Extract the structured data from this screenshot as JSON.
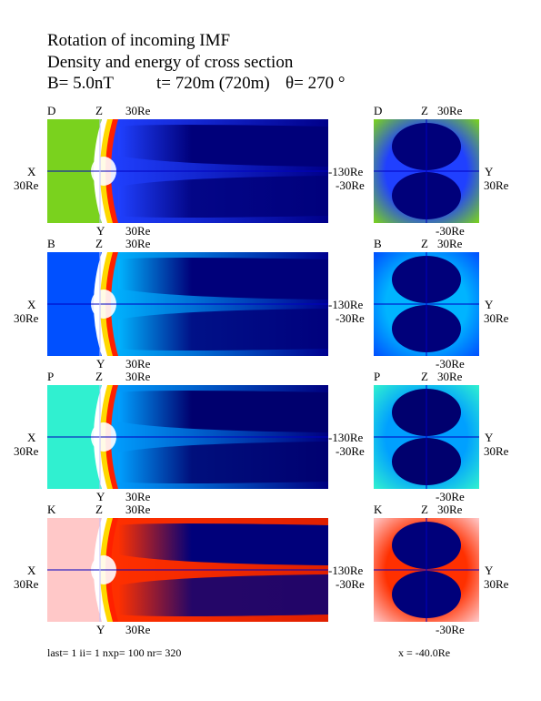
{
  "title": {
    "line1": "Rotation of incoming IMF",
    "line2": "Density and energy of cross section",
    "b_field": "B= 5.0nT",
    "time": "t= 720m  (720m)",
    "theta": "θ=  270  °"
  },
  "rows": [
    {
      "id": "D",
      "letter": "D",
      "z": "Z",
      "z_dist": "30Re",
      "x": "X",
      "x_dist": "30Re",
      "neg130": "-130Re",
      "neg30": "-30Re",
      "y": "Y",
      "y_dist": "30Re",
      "right_letter": "D",
      "right_z": "Z",
      "right_z_dist": "30Re",
      "right_y": "Y",
      "right_y_dist": "30Re",
      "right_neg30": "-30Re",
      "colors": {
        "bg": "#7ad21e",
        "outer": "#2040ff",
        "inner": "#00007a",
        "wake": "#00008a"
      }
    },
    {
      "id": "B",
      "letter": "B",
      "z": "Z",
      "z_dist": "30Re",
      "x": "X",
      "x_dist": "30Re",
      "neg130": "-130Re",
      "neg30": "-30Re",
      "y": "Y",
      "y_dist": "30Re",
      "right_letter": "B",
      "right_z": "Z",
      "right_z_dist": "30Re",
      "right_y": "Y",
      "right_y_dist": "30Re",
      "right_neg30": "-30Re",
      "colors": {
        "bg": "#0050ff",
        "outer": "#00b4ff",
        "inner": "#00007a",
        "wake": "#000090"
      }
    },
    {
      "id": "P",
      "letter": "P",
      "z": "Z",
      "z_dist": "30Re",
      "x": "X",
      "x_dist": "30Re",
      "neg130": "-130Re",
      "neg30": "-30Re",
      "y": "Y",
      "y_dist": "30Re",
      "right_letter": "P",
      "right_z": "Z",
      "right_z_dist": "30Re",
      "right_y": "Y",
      "right_y_dist": "30Re",
      "right_neg30": "-30Re",
      "colors": {
        "bg": "#30f0d0",
        "outer": "#00a0ff",
        "inner": "#00006e",
        "wake": "#000080"
      }
    },
    {
      "id": "K",
      "letter": "K",
      "z": "Z",
      "z_dist": "30Re",
      "x": "X",
      "x_dist": "30Re",
      "neg130": "-130Re",
      "neg30": "-30Re",
      "y": "Y",
      "y_dist": "30Re",
      "right_letter": "K",
      "right_z": "Z",
      "right_z_dist": "30Re",
      "right_y": "Y",
      "right_y_dist": "30Re",
      "right_neg30": "-30Re",
      "colors": {
        "bg": "#ffc8c8",
        "outer": "#ff3000",
        "inner": "#00007a",
        "wake": "#e02000"
      }
    }
  ],
  "footer": {
    "last": "last=   1  ii=   1  nxp= 100  nr= 320",
    "x": "x =  -40.0Re"
  }
}
